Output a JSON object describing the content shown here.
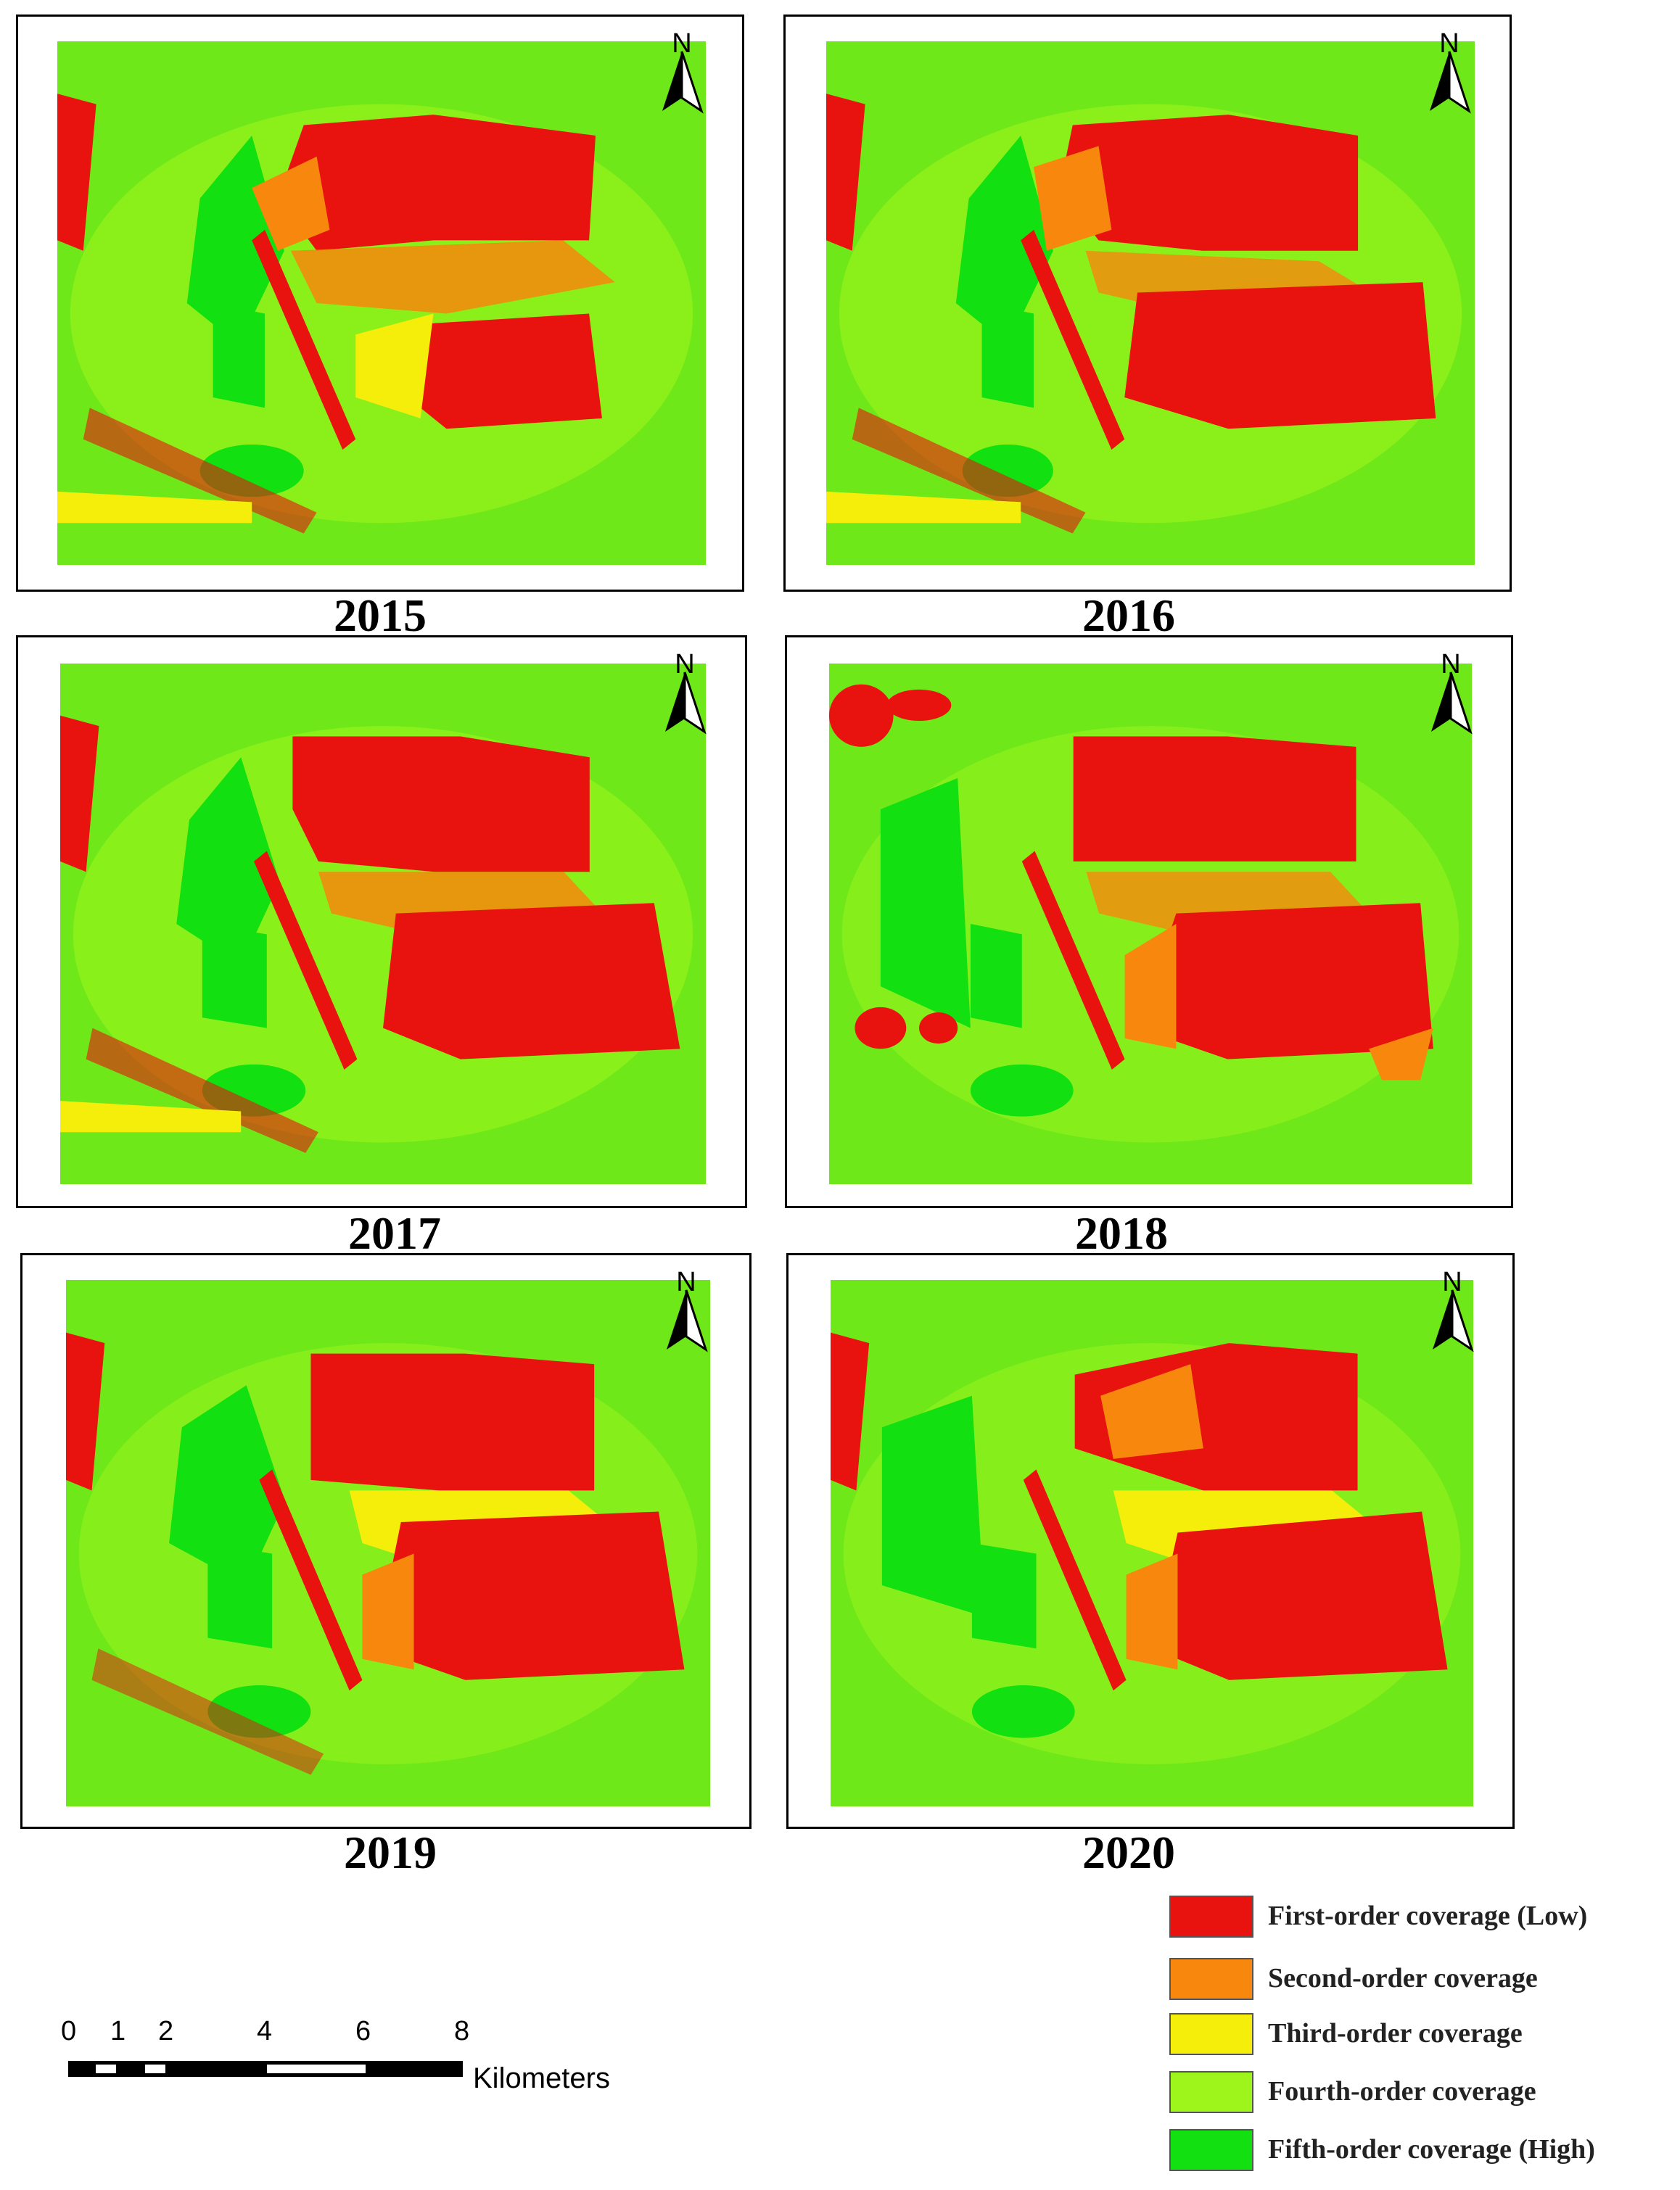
{
  "panels": [
    {
      "year": "2015"
    },
    {
      "year": "2016"
    },
    {
      "year": "2017"
    },
    {
      "year": "2018"
    },
    {
      "year": "2019"
    },
    {
      "year": "2020"
    }
  ],
  "north_arrow": {
    "label": "N"
  },
  "legend": {
    "items": [
      {
        "label": "First-order coverage (Low)",
        "color": "#e8120f"
      },
      {
        "label": "Second-order coverage",
        "color": "#f7870d"
      },
      {
        "label": "Third-order coverage",
        "color": "#f4ee0a"
      },
      {
        "label": "Fourth-order coverage",
        "color": "#9ef51b"
      },
      {
        "label": "Fifth-order coverage (High)",
        "color": "#12e010"
      }
    ]
  },
  "scale_bar": {
    "ticks": [
      "0",
      "1",
      "2",
      "4",
      "6",
      "8"
    ],
    "units": "Kilometers"
  },
  "colors": {
    "background_green": "#6fe81a",
    "red": "#e8120f",
    "orange": "#f7870d",
    "yellow": "#f4ee0a",
    "lime": "#9ef51b",
    "green": "#12e010"
  }
}
